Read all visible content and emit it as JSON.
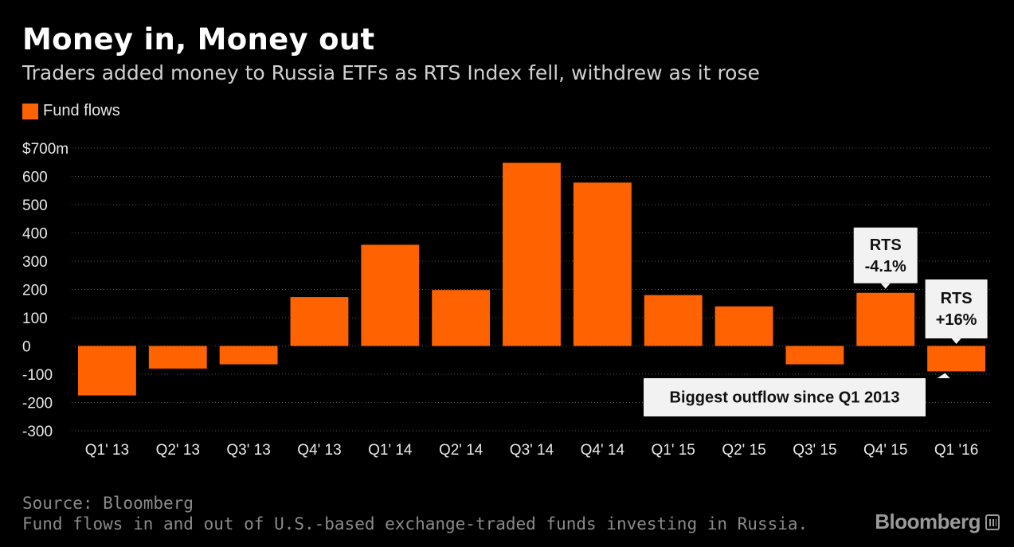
{
  "header": {
    "title": "Money in, Money out",
    "subtitle": "Traders added money to Russia ETFs as RTS Index fell, withdrew as it rose"
  },
  "legend": {
    "label": "Fund flows",
    "color": "#ff6200"
  },
  "footer": {
    "source": "Source: Bloomberg",
    "note": "Fund flows in and out of U.S.-based exchange-traded funds investing in Russia.",
    "logo": "Bloomberg"
  },
  "chart_data": {
    "type": "bar",
    "categories": [
      "Q1' 13",
      "Q2' 13",
      "Q3' 13",
      "Q4' 13",
      "Q1' 14",
      "Q2' 14",
      "Q3' 14",
      "Q4' 14",
      "Q1' 15",
      "Q2' 15",
      "Q3' 15",
      "Q4' 15",
      "Q1 '16"
    ],
    "series": [
      {
        "name": "Fund flows",
        "values": [
          -175,
          -80,
          -65,
          173,
          358,
          198,
          648,
          578,
          180,
          140,
          -65,
          188,
          -90
        ],
        "color": "#ff6200"
      }
    ],
    "ylim": [
      -300,
      700
    ],
    "yticks": [
      -300,
      -200,
      -100,
      0,
      100,
      200,
      300,
      400,
      500,
      600,
      700
    ],
    "ytick_labels": [
      "-300",
      "-200",
      "-100",
      "0",
      "100",
      "200",
      "300",
      "400",
      "500",
      "600",
      "$700m"
    ],
    "grid": true,
    "legend_position": "top-left",
    "annotations": [
      {
        "category": "Q4' 15",
        "lines": [
          "RTS",
          "-4.1%"
        ]
      },
      {
        "category": "Q1 '16",
        "lines": [
          "RTS",
          "+16%"
        ]
      },
      {
        "category": "Q1 '16",
        "lines": [
          "Biggest outflow since Q1 2013"
        ]
      }
    ]
  }
}
